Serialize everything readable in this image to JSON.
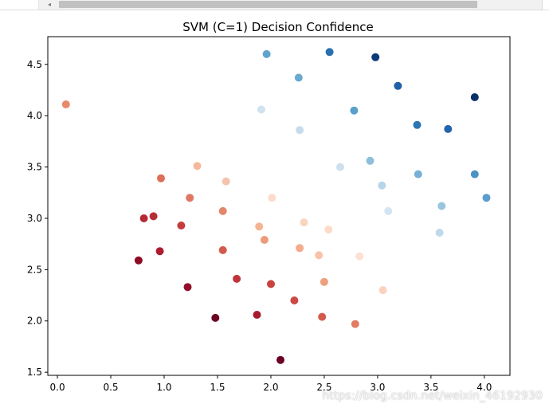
{
  "scrollbar": {
    "left_arrow": "◂"
  },
  "chart_data": {
    "type": "scatter",
    "title": "SVM (C=1) Decision Confidence",
    "xlabel": "",
    "ylabel": "",
    "xlim": [
      -0.09,
      4.24
    ],
    "ylim": [
      1.47,
      4.77
    ],
    "xticks": [
      0.0,
      0.5,
      1.0,
      1.5,
      2.0,
      2.5,
      3.0,
      3.5,
      4.0
    ],
    "xtick_labels": [
      "0.0",
      "0.5",
      "1.0",
      "1.5",
      "2.0",
      "2.5",
      "3.0",
      "3.5",
      "4.0"
    ],
    "yticks": [
      1.5,
      2.0,
      2.5,
      3.0,
      3.5,
      4.0,
      4.5
    ],
    "ytick_labels": [
      "1.5",
      "2.0",
      "2.5",
      "3.0",
      "3.5",
      "4.0",
      "4.5"
    ],
    "grid": false,
    "colormap": "RdBu",
    "points": [
      {
        "x": 0.08,
        "y": 4.11,
        "color": "#e78a6a"
      },
      {
        "x": 1.96,
        "y": 4.6,
        "color": "#62a3cc"
      },
      {
        "x": 2.55,
        "y": 4.62,
        "color": "#2a6fb0"
      },
      {
        "x": 2.98,
        "y": 4.57,
        "color": "#0d3b79"
      },
      {
        "x": 2.26,
        "y": 4.37,
        "color": "#6aa9d0"
      },
      {
        "x": 3.19,
        "y": 4.29,
        "color": "#1f60a6"
      },
      {
        "x": 3.91,
        "y": 4.18,
        "color": "#08306b"
      },
      {
        "x": 1.91,
        "y": 4.06,
        "color": "#cfe3ef"
      },
      {
        "x": 2.78,
        "y": 4.05,
        "color": "#5aa0cb"
      },
      {
        "x": 2.27,
        "y": 3.86,
        "color": "#c6dcec"
      },
      {
        "x": 3.37,
        "y": 3.91,
        "color": "#2c74b4"
      },
      {
        "x": 3.66,
        "y": 3.87,
        "color": "#2464ab"
      },
      {
        "x": 2.65,
        "y": 3.5,
        "color": "#cce0ee"
      },
      {
        "x": 2.93,
        "y": 3.56,
        "color": "#8dbedd"
      },
      {
        "x": 3.38,
        "y": 3.43,
        "color": "#76b0d6"
      },
      {
        "x": 3.91,
        "y": 3.43,
        "color": "#4b92c5"
      },
      {
        "x": 3.04,
        "y": 3.32,
        "color": "#b7d5e8"
      },
      {
        "x": 4.02,
        "y": 3.2,
        "color": "#5b9ecd"
      },
      {
        "x": 3.6,
        "y": 3.12,
        "color": "#99c5e0"
      },
      {
        "x": 3.1,
        "y": 3.07,
        "color": "#d3e5f1"
      },
      {
        "x": 3.58,
        "y": 2.86,
        "color": "#bfd9ea"
      },
      {
        "x": 0.97,
        "y": 3.39,
        "color": "#dc6f59"
      },
      {
        "x": 1.31,
        "y": 3.51,
        "color": "#f6b89c"
      },
      {
        "x": 1.58,
        "y": 3.36,
        "color": "#f5c3ad"
      },
      {
        "x": 1.24,
        "y": 3.2,
        "color": "#df7862"
      },
      {
        "x": 2.01,
        "y": 3.2,
        "color": "#fbdccd"
      },
      {
        "x": 0.81,
        "y": 3.0,
        "color": "#b52935"
      },
      {
        "x": 0.9,
        "y": 3.02,
        "color": "#b72e37"
      },
      {
        "x": 1.55,
        "y": 3.07,
        "color": "#e3866b"
      },
      {
        "x": 2.31,
        "y": 2.96,
        "color": "#fad3c1"
      },
      {
        "x": 1.16,
        "y": 2.93,
        "color": "#c43c3c"
      },
      {
        "x": 1.89,
        "y": 2.92,
        "color": "#f5b496"
      },
      {
        "x": 2.54,
        "y": 2.89,
        "color": "#fddbc9"
      },
      {
        "x": 1.94,
        "y": 2.79,
        "color": "#ec9b7c"
      },
      {
        "x": 2.27,
        "y": 2.71,
        "color": "#f3ab8c"
      },
      {
        "x": 0.76,
        "y": 2.59,
        "color": "#8c0c26"
      },
      {
        "x": 0.96,
        "y": 2.68,
        "color": "#ad1d30"
      },
      {
        "x": 1.55,
        "y": 2.69,
        "color": "#d35a4a"
      },
      {
        "x": 2.45,
        "y": 2.64,
        "color": "#f8c3a9"
      },
      {
        "x": 2.83,
        "y": 2.63,
        "color": "#fde0d3"
      },
      {
        "x": 1.68,
        "y": 2.41,
        "color": "#c0343c"
      },
      {
        "x": 2.0,
        "y": 2.36,
        "color": "#c8423f"
      },
      {
        "x": 2.5,
        "y": 2.38,
        "color": "#ee9f7e"
      },
      {
        "x": 1.22,
        "y": 2.33,
        "color": "#940e29"
      },
      {
        "x": 3.05,
        "y": 2.3,
        "color": "#fad2bf"
      },
      {
        "x": 2.22,
        "y": 2.2,
        "color": "#cb4a45"
      },
      {
        "x": 1.48,
        "y": 2.03,
        "color": "#6c0424"
      },
      {
        "x": 1.87,
        "y": 2.06,
        "color": "#a51a2e"
      },
      {
        "x": 2.48,
        "y": 2.04,
        "color": "#d25b4c"
      },
      {
        "x": 2.79,
        "y": 1.97,
        "color": "#e27b62"
      },
      {
        "x": 2.09,
        "y": 1.62,
        "color": "#6a0021"
      }
    ]
  },
  "watermark": "https://blog.csdn.net/weixin_46192930"
}
